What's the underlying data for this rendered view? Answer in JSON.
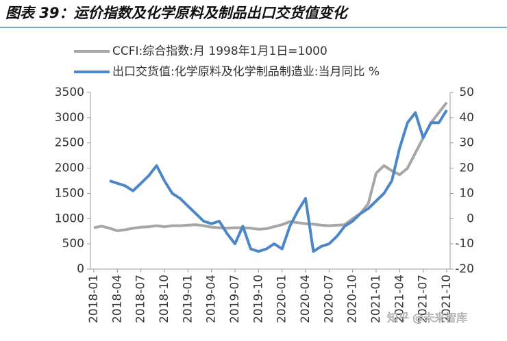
{
  "chart_data": {
    "type": "line",
    "title": "图表 39：运价指数及化学原料及制品出口交货值变化",
    "watermark": "知乎 @未来智库",
    "categories": [
      "2018-01",
      null,
      null,
      "2018-04",
      null,
      null,
      "2018-07",
      null,
      null,
      "2018-10",
      null,
      null,
      "2019-01",
      null,
      null,
      "2019-04",
      null,
      null,
      "2019-07",
      null,
      null,
      "2019-10",
      null,
      null,
      "2020-01",
      null,
      null,
      "2020-04",
      null,
      null,
      "2020-07",
      null,
      null,
      "2020-10",
      null,
      null,
      "2021-01",
      null,
      null,
      "2021-04",
      null,
      null,
      "2021-07",
      null,
      null,
      "2021-10"
    ],
    "series": [
      {
        "name": "CCFI:综合指数:月 1998年1月1日=1000",
        "color": "#a6a6a6",
        "axis": "y",
        "values": [
          820,
          850,
          810,
          760,
          780,
          810,
          830,
          840,
          860,
          840,
          860,
          860,
          870,
          880,
          860,
          830,
          820,
          810,
          820,
          820,
          810,
          790,
          800,
          840,
          880,
          940,
          920,
          900,
          890,
          870,
          860,
          870,
          880,
          1000,
          1100,
          1300,
          1900,
          2050,
          1950,
          1870,
          2000,
          2300,
          2600,
          2900,
          3100,
          3300
        ]
      },
      {
        "name": "出口交货值:化学原料及化学制品制造业:当月同比 %",
        "color": "#4a86c8",
        "axis": "y2",
        "values": [
          null,
          null,
          15,
          14,
          13,
          11,
          14,
          17,
          21,
          15,
          10,
          8,
          5,
          2,
          -1,
          -2,
          -1,
          -6,
          -10,
          -3,
          -12,
          -13,
          -12,
          -10,
          -12,
          -3,
          3,
          8,
          -13,
          -11,
          -10,
          -7,
          -3,
          -1,
          2,
          4,
          7,
          10,
          15,
          28,
          38,
          42,
          32,
          38,
          38,
          43
        ]
      }
    ],
    "ylim": [
      0,
      3500
    ],
    "yticks": [
      0,
      500,
      1000,
      1500,
      2000,
      2500,
      3000,
      3500
    ],
    "y2lim": [
      -20,
      50
    ],
    "y2ticks": [
      -20,
      -10,
      0,
      10,
      20,
      30,
      40,
      50
    ]
  }
}
